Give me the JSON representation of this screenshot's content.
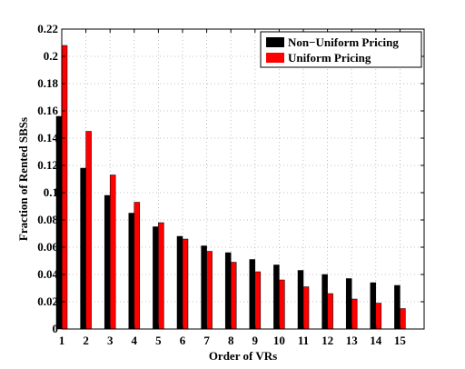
{
  "chart_data": {
    "type": "bar",
    "title": "",
    "xlabel": "Order of VRs",
    "ylabel": "Fraction of Rented SBSs",
    "categories": [
      "1",
      "2",
      "3",
      "4",
      "5",
      "6",
      "7",
      "8",
      "9",
      "10",
      "11",
      "12",
      "13",
      "14",
      "15"
    ],
    "ylim": [
      0,
      0.22
    ],
    "yticks": [
      "0",
      "0.02",
      "0.04",
      "0.06",
      "0.08",
      "0.1",
      "0.12",
      "0.14",
      "0.16",
      "0.18",
      "0.2",
      "0.22"
    ],
    "grid": true,
    "legend_position": "top-right",
    "series": [
      {
        "name": "Non−Uniform Pricing",
        "color": "#000000",
        "values": [
          0.156,
          0.118,
          0.098,
          0.085,
          0.075,
          0.068,
          0.061,
          0.056,
          0.051,
          0.047,
          0.043,
          0.04,
          0.037,
          0.034,
          0.032
        ]
      },
      {
        "name": "Uniform Pricing",
        "color": "#ff0000",
        "values": [
          0.208,
          0.145,
          0.113,
          0.093,
          0.078,
          0.066,
          0.057,
          0.049,
          0.042,
          0.036,
          0.031,
          0.026,
          0.022,
          0.019,
          0.015
        ]
      }
    ]
  }
}
